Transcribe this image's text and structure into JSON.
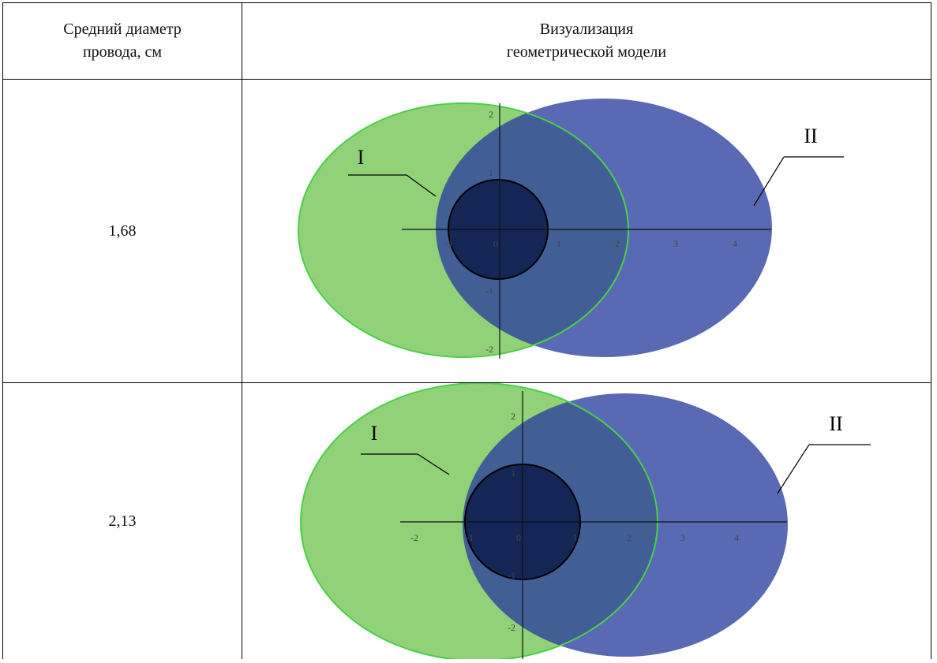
{
  "header": {
    "col1": "Средний диаметр\nпровода, см",
    "col2": "Визуализация\nгеометрической модели"
  },
  "rows": [
    {
      "diameter": "1,68",
      "label_left": "I",
      "label_right": "II",
      "x_ticks": [
        "-1",
        "0",
        "1",
        "2",
        "3",
        "4"
      ],
      "y_ticks": [
        "2",
        "1",
        "-1",
        "-2"
      ]
    },
    {
      "diameter": "2,13",
      "label_left": "I",
      "label_right": "II",
      "x_ticks": [
        "-2",
        "-1",
        "0",
        "1",
        "2",
        "3",
        "4"
      ],
      "y_ticks": [
        "2",
        "1",
        "-1",
        "-2"
      ]
    }
  ],
  "colors": {
    "green_ellipse": "#6cc24a",
    "blue_ellipse": "#2b4aa8",
    "overlap_blue": "#2f5cc0",
    "small_circle": "#0e2050",
    "border": "#000000"
  }
}
